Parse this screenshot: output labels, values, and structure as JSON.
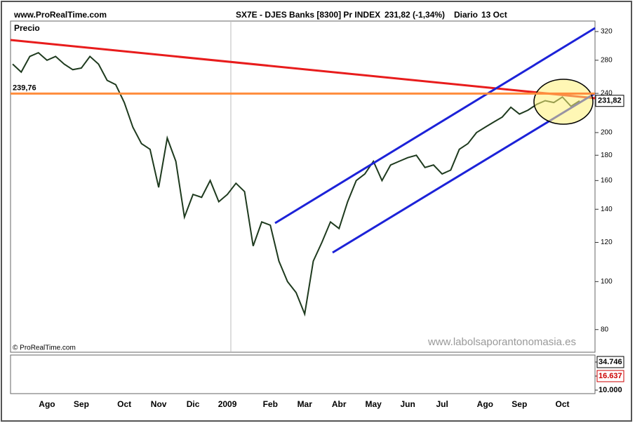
{
  "chart_data": {
    "type": "line",
    "site": "www.ProRealTime.com",
    "title": "SX7E - DJES Banks [8300] Pr INDEX",
    "last_quote": "231,82 (-1,34%)",
    "period": "Diario",
    "date": "13 Oct",
    "y_label": "Precio",
    "copyright": "© ProRealTime.com",
    "watermark": "www.labolsaporantonomasia.es",
    "log_scale": true,
    "ylim": [
      72,
      336
    ],
    "yticks": [
      80,
      100,
      120,
      140,
      160,
      180,
      200,
      240,
      280,
      320
    ],
    "reference_line": {
      "value": 239.76,
      "label": "239,76"
    },
    "categories": [
      null,
      null,
      null,
      null,
      "Ago",
      null,
      null,
      null,
      "Sep",
      null,
      null,
      null,
      null,
      "Oct",
      null,
      null,
      null,
      "Nov",
      null,
      null,
      null,
      "Dic",
      null,
      null,
      null,
      "2009",
      null,
      null,
      null,
      null,
      "Feb",
      null,
      null,
      null,
      "Mar",
      null,
      null,
      null,
      "Abr",
      null,
      null,
      null,
      "May",
      null,
      null,
      null,
      "Jun",
      null,
      null,
      null,
      "Jul",
      null,
      null,
      null,
      null,
      "Ago",
      null,
      null,
      null,
      "Sep",
      null,
      null,
      null,
      null,
      "Oct",
      null,
      null
    ],
    "series": [
      {
        "name": "SX7E",
        "color": "#1e3a1e",
        "values": [
          275,
          265,
          285,
          290,
          280,
          285,
          275,
          268,
          270,
          285,
          275,
          255,
          250,
          230,
          205,
          190,
          185,
          155,
          195,
          175,
          135,
          150,
          148,
          160,
          145,
          150,
          158,
          152,
          118,
          132,
          130,
          110,
          100,
          95,
          86,
          110,
          120,
          132,
          128,
          145,
          160,
          165,
          175,
          160,
          172,
          175,
          178,
          180,
          170,
          172,
          165,
          168,
          185,
          190,
          200,
          205,
          210,
          215,
          225,
          218,
          222,
          228,
          232,
          230,
          236,
          226,
          231.82
        ],
        "value_labels": [
          null,
          null,
          null,
          null,
          null,
          null,
          null,
          null,
          null,
          null,
          null,
          null,
          null,
          null,
          null,
          null,
          null,
          null,
          null,
          null,
          null,
          null,
          null,
          null,
          null,
          null,
          null,
          null,
          null,
          null,
          null,
          null,
          null,
          null,
          null,
          null,
          null,
          null,
          null,
          null,
          null,
          null,
          null,
          null,
          null,
          null,
          null,
          null,
          null,
          null,
          null,
          null,
          null,
          null,
          null,
          null,
          null,
          null,
          null,
          null,
          null,
          null,
          null,
          null,
          null,
          null,
          "231,82"
        ]
      }
    ],
    "indicator_ticks": [
      {
        "value": 34746,
        "label": "34.746"
      },
      {
        "value": 16637,
        "label": "16.637"
      },
      {
        "value": 10000,
        "label": "10.000"
      }
    ]
  }
}
